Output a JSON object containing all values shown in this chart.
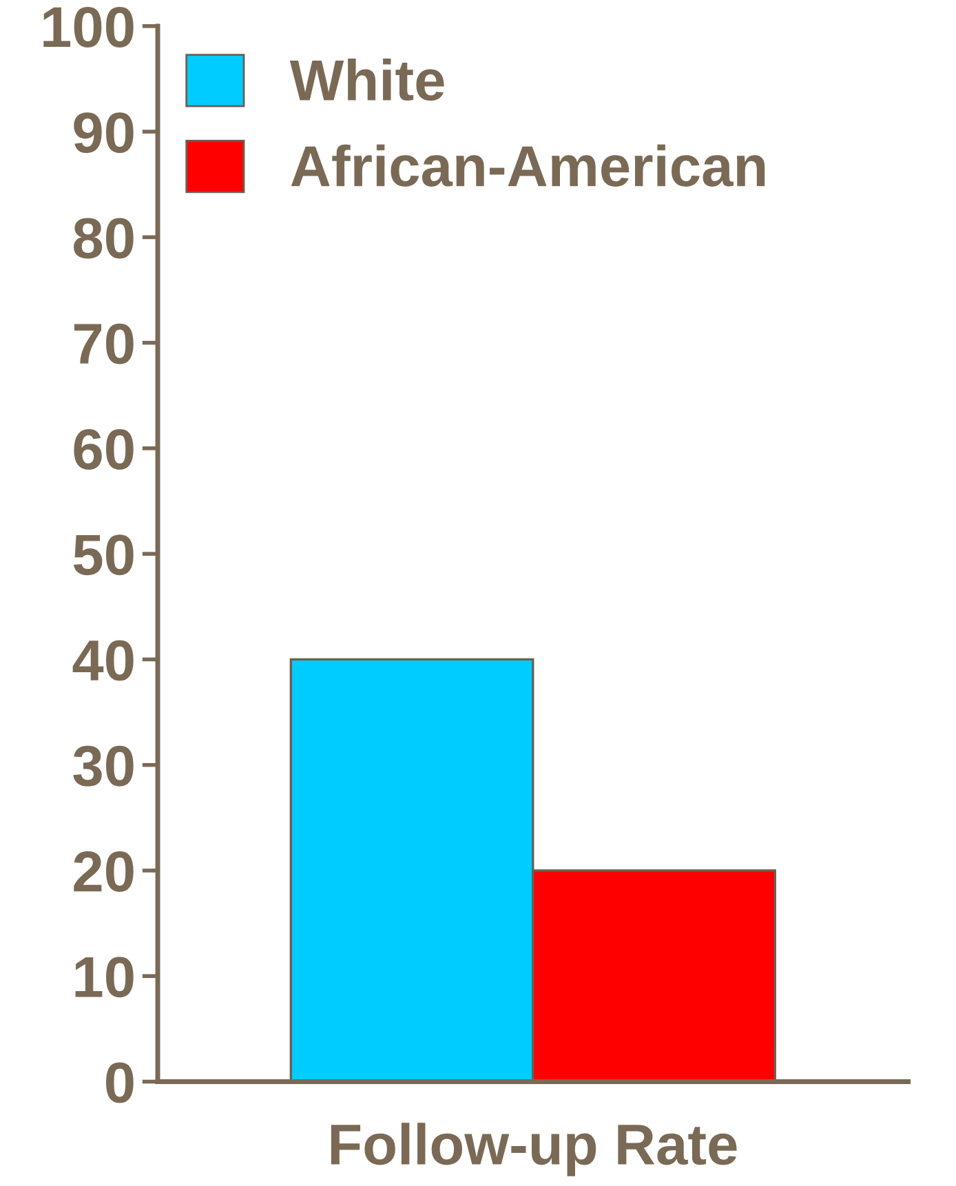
{
  "chart_data": {
    "type": "bar",
    "xlabel": "Follow-up Rate",
    "categories": [
      null
    ],
    "series": [
      {
        "name": "White",
        "color": "#00ccff",
        "values": [
          40
        ]
      },
      {
        "name": "African-American",
        "color": "#ff0000",
        "values": [
          20
        ]
      }
    ],
    "ylim": [
      0,
      100
    ],
    "yticks": [
      0,
      10,
      20,
      30,
      40,
      50,
      60,
      70,
      80,
      90,
      100
    ],
    "grid": false,
    "legend": "top left"
  }
}
